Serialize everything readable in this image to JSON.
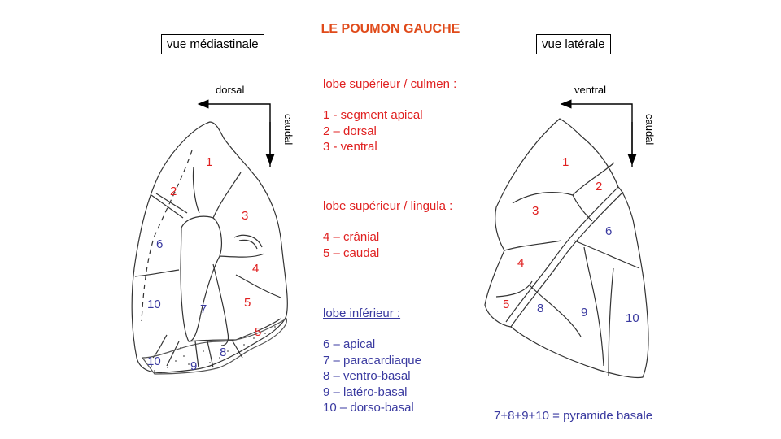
{
  "title": "LE POUMON GAUCHE",
  "left_view": {
    "label": "vue médiastinale",
    "dir_h": "dorsal",
    "dir_v": "caudal"
  },
  "right_view": {
    "label": "vue latérale",
    "dir_h": "ventral",
    "dir_v": "caudal"
  },
  "left_numbers": {
    "n1": "1",
    "n2": "2",
    "n3": "3",
    "n4": "4",
    "n5a": "5",
    "n5b": "5",
    "n6": "6",
    "n7": "7",
    "n8": "8",
    "n9": "9",
    "n10a": "10",
    "n10b": "10"
  },
  "right_numbers": {
    "n1": "1",
    "n2": "2",
    "n3": "3",
    "n4": "4",
    "n5": "5",
    "n6": "6",
    "n8": "8",
    "n9": "9",
    "n10": "10"
  },
  "legend": {
    "culmen": {
      "heading": "lobe supérieur / culmen :",
      "items": [
        "1 - segment apical",
        "2 – dorsal",
        "3 - ventral"
      ]
    },
    "lingula": {
      "heading": "lobe supérieur / lingula :",
      "items": [
        "4 – crânial",
        "5 – caudal"
      ]
    },
    "inferior": {
      "heading": "lobe inférieur :",
      "items": [
        "6 – apical",
        "7 – paracardiaque",
        "8 – ventro-basal",
        "9 – latéro-basal",
        "10 – dorso-basal"
      ]
    }
  },
  "footer": "7+8+9+10 = pyramide basale",
  "colors": {
    "title": "#e04a1a",
    "upper_lobe": "#e02020",
    "lower_lobe": "#3a3aa0"
  }
}
